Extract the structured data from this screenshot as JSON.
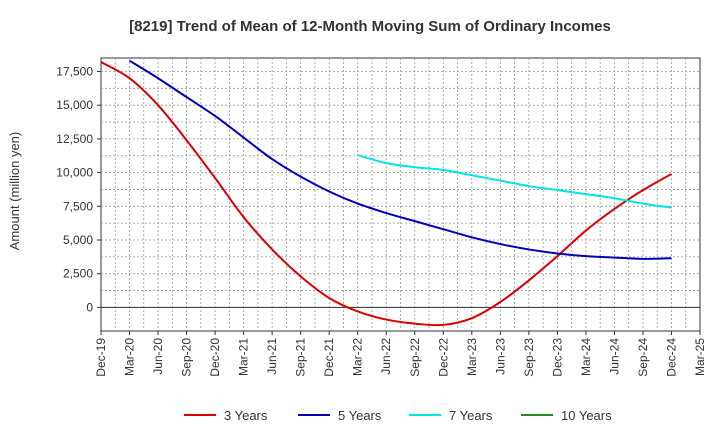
{
  "chart_data": {
    "type": "line",
    "title": "[8219]  Trend of Mean of 12-Month Moving Sum of Ordinary Incomes",
    "xlabel": "",
    "ylabel": "Amount (million yen)",
    "ylim": [
      -1750,
      18500
    ],
    "yticks": [
      0,
      2500,
      5000,
      7500,
      10000,
      12500,
      15000,
      17500
    ],
    "ytick_labels": [
      "0",
      "2,500",
      "5,000",
      "7,500",
      "10,000",
      "12,500",
      "15,000",
      "17,500"
    ],
    "x_categories": [
      "Dec-19",
      "Mar-20",
      "Jun-20",
      "Sep-20",
      "Dec-20",
      "Mar-21",
      "Jun-21",
      "Sep-21",
      "Dec-21",
      "Mar-22",
      "Jun-22",
      "Sep-22",
      "Dec-22",
      "Mar-23",
      "Jun-23",
      "Sep-23",
      "Dec-23",
      "Mar-24",
      "Jun-24",
      "Sep-24",
      "Dec-24",
      "Mar-25"
    ],
    "grid": true,
    "series": [
      {
        "name": "3 Years",
        "color": "#dd0000",
        "values": [
          18200,
          17000,
          15000,
          12400,
          9600,
          6700,
          4300,
          2300,
          700,
          -300,
          -900,
          -1200,
          -1300,
          -800,
          400,
          2000,
          3800,
          5700,
          7300,
          8700,
          9900,
          null
        ]
      },
      {
        "name": "5 Years",
        "color": "#0000bb",
        "values": [
          null,
          18300,
          17000,
          15600,
          14200,
          12600,
          11000,
          9700,
          8600,
          7700,
          7000,
          6400,
          5800,
          5200,
          4700,
          4300,
          4000,
          3800,
          3700,
          3600,
          3650,
          null
        ]
      },
      {
        "name": "7 Years",
        "color": "#00e5e5",
        "values": [
          null,
          null,
          null,
          null,
          null,
          null,
          null,
          null,
          null,
          11300,
          10700,
          10400,
          10200,
          9800,
          9400,
          9000,
          8700,
          8400,
          8100,
          7700,
          7400,
          null
        ]
      },
      {
        "name": "10 Years",
        "color": "#228b22",
        "values": [
          null,
          null,
          null,
          null,
          null,
          null,
          null,
          null,
          null,
          null,
          null,
          null,
          null,
          null,
          null,
          null,
          null,
          null,
          null,
          null,
          null,
          null
        ]
      }
    ]
  }
}
